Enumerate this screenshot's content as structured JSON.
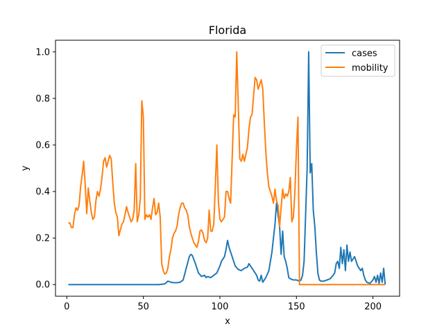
{
  "chart_data": {
    "type": "line",
    "title": "Florida",
    "xlabel": "x",
    "ylabel": "y",
    "xlim": [
      -7.4,
      217.4
    ],
    "ylim": [
      -0.05,
      1.05
    ],
    "xticks": [
      0,
      50,
      100,
      150,
      200
    ],
    "yticks": [
      0.0,
      0.2,
      0.4,
      0.6,
      0.8,
      1.0
    ],
    "xtick_labels": [
      "0",
      "50",
      "100",
      "150",
      "200"
    ],
    "ytick_labels": [
      "0.0",
      "0.2",
      "0.4",
      "0.6",
      "0.8",
      "1.0"
    ],
    "grid": false,
    "legend_position": "top-right",
    "series": [
      {
        "name": "cases",
        "color": "#1f77b4",
        "points": [
          [
            1,
            0.0
          ],
          [
            20,
            0.0
          ],
          [
            40,
            0.0
          ],
          [
            60,
            0.0
          ],
          [
            64,
            0.003
          ],
          [
            66,
            0.015
          ],
          [
            68,
            0.01
          ],
          [
            70,
            0.008
          ],
          [
            72,
            0.008
          ],
          [
            74,
            0.01
          ],
          [
            76,
            0.02
          ],
          [
            78,
            0.07
          ],
          [
            80,
            0.12
          ],
          [
            81,
            0.13
          ],
          [
            82,
            0.125
          ],
          [
            84,
            0.09
          ],
          [
            86,
            0.05
          ],
          [
            88,
            0.035
          ],
          [
            90,
            0.04
          ],
          [
            91,
            0.03
          ],
          [
            92,
            0.035
          ],
          [
            94,
            0.03
          ],
          [
            96,
            0.04
          ],
          [
            98,
            0.05
          ],
          [
            100,
            0.08
          ],
          [
            101,
            0.1
          ],
          [
            102,
            0.11
          ],
          [
            103,
            0.12
          ],
          [
            104,
            0.15
          ],
          [
            105,
            0.19
          ],
          [
            106,
            0.16
          ],
          [
            108,
            0.12
          ],
          [
            110,
            0.08
          ],
          [
            112,
            0.065
          ],
          [
            114,
            0.06
          ],
          [
            116,
            0.07
          ],
          [
            118,
            0.075
          ],
          [
            119,
            0.09
          ],
          [
            120,
            0.08
          ],
          [
            122,
            0.06
          ],
          [
            124,
            0.04
          ],
          [
            125,
            0.02
          ],
          [
            126,
            0.015
          ],
          [
            127,
            0.04
          ],
          [
            128,
            0.01
          ],
          [
            130,
            0.03
          ],
          [
            132,
            0.06
          ],
          [
            133,
            0.1
          ],
          [
            134,
            0.14
          ],
          [
            135,
            0.2
          ],
          [
            136,
            0.26
          ],
          [
            137,
            0.35
          ],
          [
            138,
            0.3
          ],
          [
            139,
            0.25
          ],
          [
            140,
            0.13
          ],
          [
            141,
            0.23
          ],
          [
            142,
            0.12
          ],
          [
            143,
            0.1
          ],
          [
            144,
            0.07
          ],
          [
            145,
            0.03
          ],
          [
            146,
            0.025
          ],
          [
            148,
            0.02
          ],
          [
            150,
            0.02
          ],
          [
            152,
            0.015
          ],
          [
            153,
            0.02
          ],
          [
            154,
            0.04
          ],
          [
            155,
            0.1
          ],
          [
            156,
            0.3
          ],
          [
            157,
            0.5
          ],
          [
            158,
            1.0
          ],
          [
            159,
            0.48
          ],
          [
            160,
            0.52
          ],
          [
            161,
            0.32
          ],
          [
            162,
            0.25
          ],
          [
            163,
            0.14
          ],
          [
            164,
            0.05
          ],
          [
            165,
            0.02
          ],
          [
            166,
            0.015
          ],
          [
            168,
            0.015
          ],
          [
            170,
            0.02
          ],
          [
            172,
            0.025
          ],
          [
            174,
            0.04
          ],
          [
            175,
            0.05
          ],
          [
            176,
            0.09
          ],
          [
            177,
            0.1
          ],
          [
            178,
            0.07
          ],
          [
            179,
            0.16
          ],
          [
            180,
            0.09
          ],
          [
            181,
            0.15
          ],
          [
            182,
            0.06
          ],
          [
            183,
            0.17
          ],
          [
            184,
            0.1
          ],
          [
            185,
            0.14
          ],
          [
            186,
            0.1
          ],
          [
            188,
            0.12
          ],
          [
            190,
            0.08
          ],
          [
            192,
            0.06
          ],
          [
            193,
            0.07
          ],
          [
            194,
            0.04
          ],
          [
            195,
            0.02
          ],
          [
            196,
            0.01
          ],
          [
            198,
            0.005
          ],
          [
            200,
            0.02
          ],
          [
            201,
            0.035
          ],
          [
            202,
            0.01
          ],
          [
            203,
            0.04
          ],
          [
            204,
            0.005
          ],
          [
            205,
            0.05
          ],
          [
            206,
            0.01
          ],
          [
            207,
            0.07
          ],
          [
            208,
            0.0
          ]
        ]
      },
      {
        "name": "mobility",
        "color": "#ff7f0e",
        "points": [
          [
            1,
            0.265
          ],
          [
            2,
            0.265
          ],
          [
            3,
            0.245
          ],
          [
            4,
            0.245
          ],
          [
            5,
            0.3
          ],
          [
            6,
            0.33
          ],
          [
            7,
            0.32
          ],
          [
            8,
            0.34
          ],
          [
            9,
            0.42
          ],
          [
            10,
            0.47
          ],
          [
            11,
            0.53
          ],
          [
            12,
            0.43
          ],
          [
            13,
            0.305
          ],
          [
            14,
            0.415
          ],
          [
            15,
            0.36
          ],
          [
            16,
            0.31
          ],
          [
            17,
            0.28
          ],
          [
            18,
            0.29
          ],
          [
            19,
            0.36
          ],
          [
            20,
            0.4
          ],
          [
            21,
            0.38
          ],
          [
            22,
            0.41
          ],
          [
            23,
            0.46
          ],
          [
            24,
            0.53
          ],
          [
            25,
            0.545
          ],
          [
            26,
            0.505
          ],
          [
            27,
            0.53
          ],
          [
            28,
            0.555
          ],
          [
            29,
            0.54
          ],
          [
            30,
            0.44
          ],
          [
            31,
            0.35
          ],
          [
            32,
            0.31
          ],
          [
            33,
            0.29
          ],
          [
            34,
            0.21
          ],
          [
            35,
            0.235
          ],
          [
            36,
            0.26
          ],
          [
            37,
            0.27
          ],
          [
            38,
            0.3
          ],
          [
            39,
            0.335
          ],
          [
            40,
            0.31
          ],
          [
            41,
            0.29
          ],
          [
            42,
            0.27
          ],
          [
            43,
            0.28
          ],
          [
            44,
            0.32
          ],
          [
            45,
            0.52
          ],
          [
            46,
            0.27
          ],
          [
            47,
            0.3
          ],
          [
            48,
            0.37
          ],
          [
            49,
            0.79
          ],
          [
            50,
            0.72
          ],
          [
            51,
            0.28
          ],
          [
            52,
            0.3
          ],
          [
            53,
            0.29
          ],
          [
            54,
            0.3
          ],
          [
            55,
            0.28
          ],
          [
            56,
            0.33
          ],
          [
            57,
            0.37
          ],
          [
            58,
            0.3
          ],
          [
            59,
            0.31
          ],
          [
            60,
            0.35
          ],
          [
            61,
            0.29
          ],
          [
            62,
            0.09
          ],
          [
            63,
            0.06
          ],
          [
            64,
            0.045
          ],
          [
            65,
            0.05
          ],
          [
            66,
            0.07
          ],
          [
            67,
            0.12
          ],
          [
            68,
            0.15
          ],
          [
            69,
            0.2
          ],
          [
            70,
            0.22
          ],
          [
            71,
            0.23
          ],
          [
            72,
            0.25
          ],
          [
            73,
            0.3
          ],
          [
            74,
            0.33
          ],
          [
            75,
            0.35
          ],
          [
            76,
            0.35
          ],
          [
            77,
            0.33
          ],
          [
            78,
            0.32
          ],
          [
            79,
            0.3
          ],
          [
            80,
            0.25
          ],
          [
            81,
            0.22
          ],
          [
            82,
            0.2
          ],
          [
            83,
            0.18
          ],
          [
            84,
            0.17
          ],
          [
            85,
            0.16
          ],
          [
            86,
            0.185
          ],
          [
            87,
            0.23
          ],
          [
            88,
            0.235
          ],
          [
            89,
            0.22
          ],
          [
            90,
            0.19
          ],
          [
            91,
            0.18
          ],
          [
            92,
            0.2
          ],
          [
            93,
            0.32
          ],
          [
            94,
            0.23
          ],
          [
            95,
            0.23
          ],
          [
            96,
            0.26
          ],
          [
            97,
            0.42
          ],
          [
            98,
            0.6
          ],
          [
            99,
            0.36
          ],
          [
            100,
            0.28
          ],
          [
            101,
            0.27
          ],
          [
            102,
            0.28
          ],
          [
            103,
            0.29
          ],
          [
            104,
            0.4
          ],
          [
            105,
            0.4
          ],
          [
            106,
            0.37
          ],
          [
            107,
            0.35
          ],
          [
            108,
            0.54
          ],
          [
            109,
            0.73
          ],
          [
            110,
            0.72
          ],
          [
            111,
            1.0
          ],
          [
            112,
            0.77
          ],
          [
            113,
            0.54
          ],
          [
            114,
            0.53
          ],
          [
            115,
            0.56
          ],
          [
            116,
            0.53
          ],
          [
            117,
            0.56
          ],
          [
            118,
            0.59
          ],
          [
            119,
            0.67
          ],
          [
            120,
            0.72
          ],
          [
            121,
            0.73
          ],
          [
            122,
            0.81
          ],
          [
            123,
            0.89
          ],
          [
            124,
            0.88
          ],
          [
            125,
            0.84
          ],
          [
            126,
            0.86
          ],
          [
            127,
            0.88
          ],
          [
            128,
            0.84
          ],
          [
            129,
            0.7
          ],
          [
            130,
            0.57
          ],
          [
            131,
            0.48
          ],
          [
            132,
            0.42
          ],
          [
            133,
            0.4
          ],
          [
            134,
            0.38
          ],
          [
            135,
            0.35
          ],
          [
            136,
            0.41
          ],
          [
            137,
            0.36
          ],
          [
            138,
            0.34
          ],
          [
            139,
            0.25
          ],
          [
            140,
            0.33
          ],
          [
            141,
            0.41
          ],
          [
            142,
            0.37
          ],
          [
            143,
            0.39
          ],
          [
            144,
            0.38
          ],
          [
            145,
            0.4
          ],
          [
            146,
            0.46
          ],
          [
            147,
            0.27
          ],
          [
            148,
            0.29
          ],
          [
            149,
            0.4
          ],
          [
            150,
            0.58
          ],
          [
            151,
            0.72
          ],
          [
            152,
            0.0
          ],
          [
            160,
            0.0
          ],
          [
            180,
            0.0
          ],
          [
            200,
            0.0
          ],
          [
            208,
            0.0
          ]
        ]
      }
    ]
  }
}
